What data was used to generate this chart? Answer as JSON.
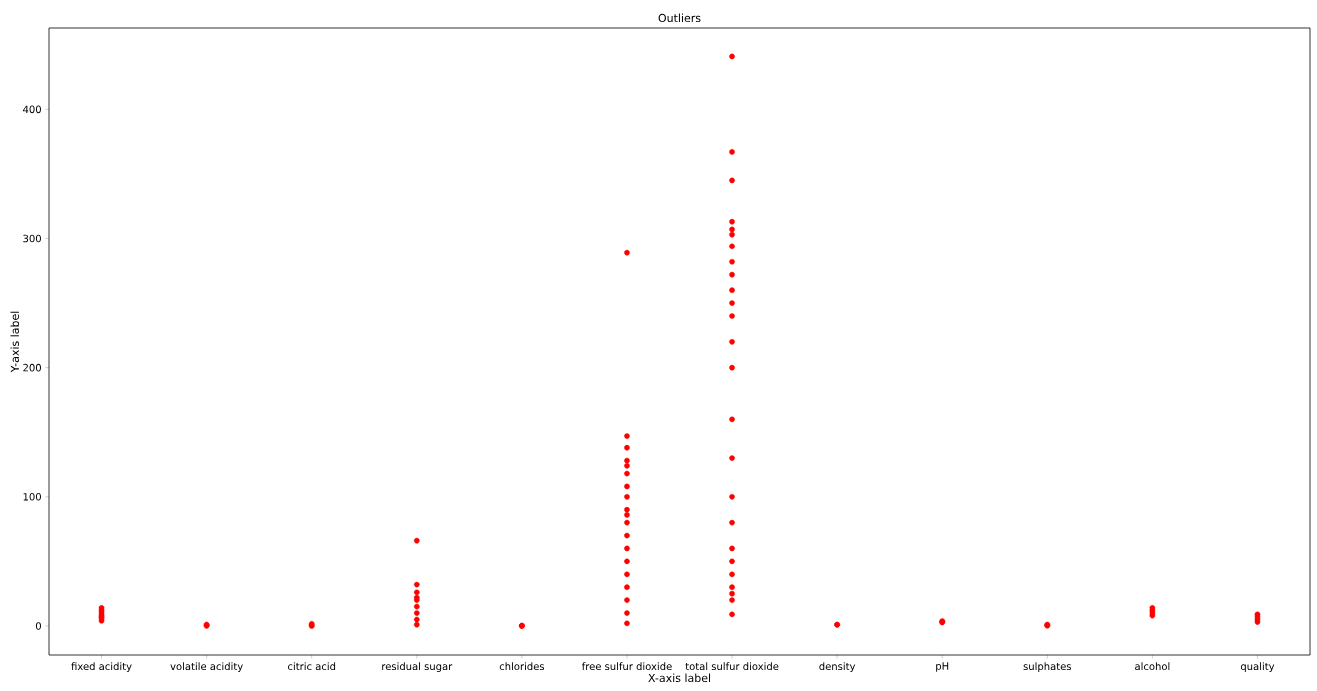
{
  "chart_data": {
    "type": "scatter",
    "title": "Outliers",
    "xlabel": "X-axis label",
    "ylabel": "Y-axis label",
    "categories": [
      "fixed acidity",
      "volatile acidity",
      "citric acid",
      "residual sugar",
      "chlorides",
      "free sulfur dioxide",
      "total sulfur dioxide",
      "density",
      "pH",
      "sulphates",
      "alcohol",
      "quality"
    ],
    "series": [
      {
        "color": "#ff0000",
        "x": [
          "fixed acidity",
          "fixed acidity",
          "fixed acidity",
          "fixed acidity",
          "fixed acidity",
          "fixed acidity",
          "fixed acidity",
          "volatile acidity",
          "volatile acidity",
          "volatile acidity",
          "citric acid",
          "citric acid",
          "citric acid",
          "residual sugar",
          "residual sugar",
          "residual sugar",
          "residual sugar",
          "residual sugar",
          "residual sugar",
          "residual sugar",
          "residual sugar",
          "residual sugar",
          "chlorides",
          "chlorides",
          "chlorides",
          "free sulfur dioxide",
          "free sulfur dioxide",
          "free sulfur dioxide",
          "free sulfur dioxide",
          "free sulfur dioxide",
          "free sulfur dioxide",
          "free sulfur dioxide",
          "free sulfur dioxide",
          "free sulfur dioxide",
          "free sulfur dioxide",
          "free sulfur dioxide",
          "free sulfur dioxide",
          "free sulfur dioxide",
          "free sulfur dioxide",
          "free sulfur dioxide",
          "free sulfur dioxide",
          "free sulfur dioxide",
          "free sulfur dioxide",
          "free sulfur dioxide",
          "total sulfur dioxide",
          "total sulfur dioxide",
          "total sulfur dioxide",
          "total sulfur dioxide",
          "total sulfur dioxide",
          "total sulfur dioxide",
          "total sulfur dioxide",
          "total sulfur dioxide",
          "total sulfur dioxide",
          "total sulfur dioxide",
          "total sulfur dioxide",
          "total sulfur dioxide",
          "total sulfur dioxide",
          "total sulfur dioxide",
          "total sulfur dioxide",
          "total sulfur dioxide",
          "total sulfur dioxide",
          "total sulfur dioxide",
          "total sulfur dioxide",
          "total sulfur dioxide",
          "total sulfur dioxide",
          "total sulfur dioxide",
          "total sulfur dioxide",
          "total sulfur dioxide",
          "total sulfur dioxide",
          "density",
          "density",
          "pH",
          "pH",
          "pH",
          "sulphates",
          "sulphates",
          "sulphates",
          "alcohol",
          "alcohol",
          "alcohol",
          "alcohol",
          "quality",
          "quality",
          "quality",
          "quality"
        ],
        "values": [
          4,
          6,
          7,
          8,
          10,
          12,
          14,
          0.1,
          0.5,
          1.1,
          0,
          0.5,
          1.7,
          1,
          5,
          10,
          15,
          20,
          22,
          26,
          32,
          66,
          0,
          0.1,
          0.3,
          2,
          10,
          20,
          30,
          40,
          50,
          60,
          70,
          80,
          86,
          90,
          100,
          108,
          118,
          124,
          128,
          138,
          147,
          289,
          9,
          20,
          25,
          30,
          40,
          50,
          60,
          80,
          100,
          130,
          160,
          200,
          220,
          240,
          250,
          260,
          272,
          282,
          294,
          303,
          307,
          313,
          345,
          367,
          441,
          1,
          1,
          2.7,
          3.2,
          3.8,
          0.2,
          0.6,
          1.1,
          8,
          10,
          12,
          14,
          3,
          5,
          7,
          9
        ]
      }
    ],
    "grid": false,
    "ylim": [
      -22.5,
      463
    ],
    "yticks": [
      0,
      100,
      200,
      300,
      400
    ]
  }
}
